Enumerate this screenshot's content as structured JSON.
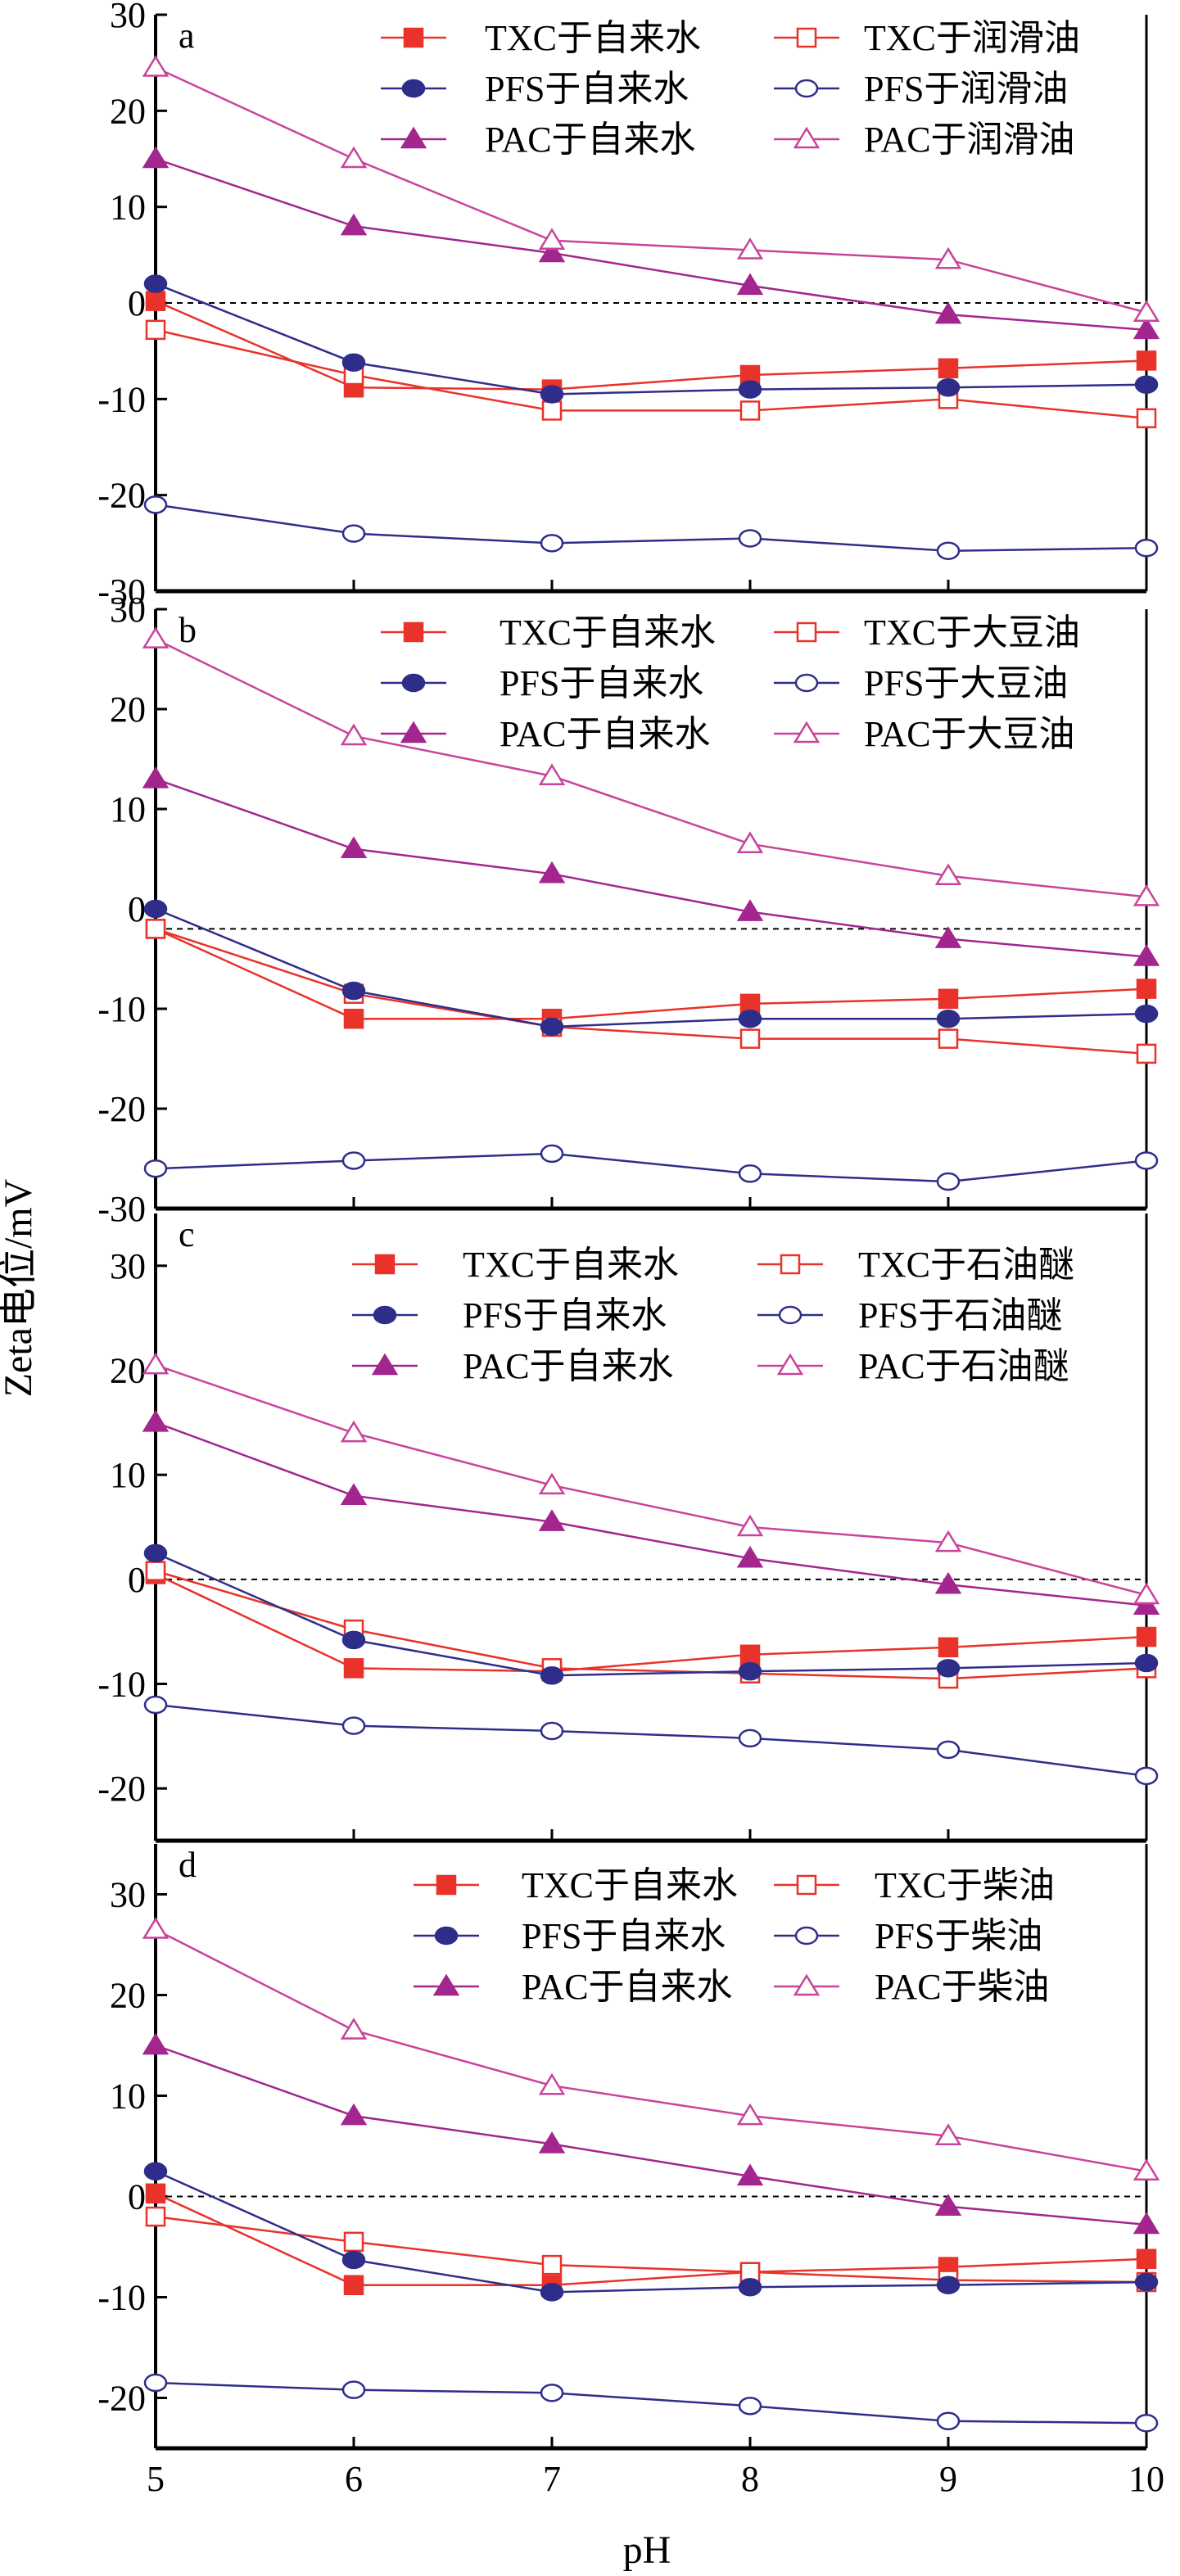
{
  "chart_data": [
    {
      "type": "line",
      "panel_label": "a",
      "x": [
        5,
        6,
        7,
        8,
        9,
        10
      ],
      "xlim": [
        5,
        10
      ],
      "ylim": [
        -30,
        30
      ],
      "yticks": [
        30,
        20,
        10,
        0,
        -10,
        -20,
        -30
      ],
      "reference_line_y": 0,
      "legend_position": "top-right",
      "series": [
        {
          "name": "TXC于自来水",
          "values": [
            0.2,
            -8.8,
            -9.0,
            -7.5,
            -6.8,
            -6.0
          ],
          "color": "#e8322a",
          "marker": "square",
          "fill": "filled"
        },
        {
          "name": "TXC于润滑油",
          "values": [
            -2.8,
            -7.5,
            -11.2,
            -11.2,
            -10.0,
            -12.0
          ],
          "color": "#e8322a",
          "marker": "square",
          "fill": "open"
        },
        {
          "name": "PFS于自来水",
          "values": [
            2.0,
            -6.2,
            -9.5,
            -9.0,
            -8.8,
            -8.5
          ],
          "color": "#2e2e8a",
          "marker": "circle",
          "fill": "filled"
        },
        {
          "name": "PFS于润滑油",
          "values": [
            -21.0,
            -24.0,
            -25.0,
            -24.5,
            -25.8,
            -25.5
          ],
          "color": "#2e2e8a",
          "marker": "circle",
          "fill": "open"
        },
        {
          "name": "PAC于自来水",
          "values": [
            15.0,
            8.0,
            5.2,
            1.8,
            -1.2,
            -2.8
          ],
          "color": "#a3268e",
          "marker": "triangle",
          "fill": "filled"
        },
        {
          "name": "PAC于润滑油",
          "values": [
            24.5,
            15.0,
            6.5,
            5.5,
            4.5,
            -1.0
          ],
          "color": "#c8449a",
          "marker": "triangle",
          "fill": "open"
        }
      ]
    },
    {
      "type": "line",
      "panel_label": "b",
      "x": [
        5,
        6,
        7,
        8,
        9,
        10
      ],
      "xlim": [
        5,
        10
      ],
      "ylim": [
        -30,
        30
      ],
      "yticks": [
        30,
        20,
        10,
        0,
        -10,
        -20,
        -30
      ],
      "reference_line_y": -2,
      "legend_position": "top-right",
      "series": [
        {
          "name": "TXC于自来水",
          "values": [
            -2.0,
            -11.0,
            -11.0,
            -9.5,
            -9.0,
            -8.0
          ],
          "color": "#e8322a",
          "marker": "square",
          "fill": "filled"
        },
        {
          "name": "TXC于大豆油",
          "values": [
            -2.0,
            -8.5,
            -11.8,
            -13.0,
            -13.0,
            -14.5
          ],
          "color": "#e8322a",
          "marker": "square",
          "fill": "open"
        },
        {
          "name": "PFS于自来水",
          "values": [
            0.0,
            -8.2,
            -11.8,
            -11.0,
            -11.0,
            -10.5
          ],
          "color": "#2e2e8a",
          "marker": "circle",
          "fill": "filled"
        },
        {
          "name": "PFS于大豆油",
          "values": [
            -26.0,
            -25.2,
            -24.5,
            -26.5,
            -27.3,
            -25.2
          ],
          "color": "#2e2e8a",
          "marker": "circle",
          "fill": "open"
        },
        {
          "name": "PAC于自来水",
          "values": [
            13.0,
            6.0,
            3.5,
            -0.3,
            -3.0,
            -4.8
          ],
          "color": "#a3268e",
          "marker": "triangle",
          "fill": "filled"
        },
        {
          "name": "PAC于大豆油",
          "values": [
            27.0,
            17.3,
            13.3,
            6.5,
            3.3,
            1.2
          ],
          "color": "#c8449a",
          "marker": "triangle",
          "fill": "open"
        }
      ]
    },
    {
      "type": "line",
      "panel_label": "c",
      "x": [
        5,
        6,
        7,
        8,
        9,
        10
      ],
      "xlim": [
        5,
        10
      ],
      "ylim": [
        -25,
        35
      ],
      "yticks": [
        30,
        20,
        10,
        0,
        -10,
        -20
      ],
      "reference_line_y": 0,
      "legend_position": "top-right",
      "series": [
        {
          "name": "TXC于自来水",
          "values": [
            0.5,
            -8.5,
            -8.8,
            -7.2,
            -6.5,
            -5.5
          ],
          "color": "#e8322a",
          "marker": "square",
          "fill": "filled"
        },
        {
          "name": "TXC于石油醚",
          "values": [
            0.8,
            -4.8,
            -8.5,
            -9.0,
            -9.5,
            -8.5
          ],
          "color": "#e8322a",
          "marker": "square",
          "fill": "open"
        },
        {
          "name": "PFS于自来水",
          "values": [
            2.5,
            -5.8,
            -9.2,
            -8.8,
            -8.5,
            -8.0
          ],
          "color": "#2e2e8a",
          "marker": "circle",
          "fill": "filled"
        },
        {
          "name": "PFS于石油醚",
          "values": [
            -12.0,
            -14.0,
            -14.5,
            -15.2,
            -16.3,
            -18.8
          ],
          "color": "#2e2e8a",
          "marker": "circle",
          "fill": "open"
        },
        {
          "name": "PAC于自来水",
          "values": [
            15.0,
            8.0,
            5.5,
            2.0,
            -0.5,
            -2.5
          ],
          "color": "#a3268e",
          "marker": "triangle",
          "fill": "filled"
        },
        {
          "name": "PAC于石油醚",
          "values": [
            20.5,
            14.0,
            9.0,
            5.0,
            3.5,
            -1.5
          ],
          "color": "#c8449a",
          "marker": "triangle",
          "fill": "open"
        }
      ]
    },
    {
      "type": "line",
      "panel_label": "d",
      "x": [
        5,
        6,
        7,
        8,
        9,
        10
      ],
      "xlim": [
        5,
        10
      ],
      "ylim": [
        -25,
        35
      ],
      "yticks": [
        30,
        20,
        10,
        0,
        -10,
        -20
      ],
      "xticks": [
        5,
        6,
        7,
        8,
        9,
        10
      ],
      "xlabel": "pH",
      "reference_line_y": 0,
      "legend_position": "top-right",
      "series": [
        {
          "name": "TXC于自来水",
          "values": [
            0.3,
            -8.8,
            -8.8,
            -7.5,
            -7.0,
            -6.2
          ],
          "color": "#e8322a",
          "marker": "square",
          "fill": "filled"
        },
        {
          "name": "TXC于柴油",
          "values": [
            -2.0,
            -4.5,
            -6.8,
            -7.5,
            -8.3,
            -8.5
          ],
          "color": "#e8322a",
          "marker": "square",
          "fill": "open"
        },
        {
          "name": "PFS于自来水",
          "values": [
            2.5,
            -6.3,
            -9.5,
            -9.0,
            -8.8,
            -8.5
          ],
          "color": "#2e2e8a",
          "marker": "circle",
          "fill": "filled"
        },
        {
          "name": "PFS于柴油",
          "values": [
            -18.5,
            -19.2,
            -19.5,
            -20.8,
            -22.3,
            -22.5
          ],
          "color": "#2e2e8a",
          "marker": "circle",
          "fill": "open"
        },
        {
          "name": "PAC于自来水",
          "values": [
            15.0,
            8.0,
            5.2,
            2.0,
            -1.0,
            -2.8
          ],
          "color": "#a3268e",
          "marker": "triangle",
          "fill": "filled"
        },
        {
          "name": "PAC于柴油",
          "values": [
            26.5,
            16.5,
            11.0,
            8.0,
            6.0,
            2.5
          ],
          "color": "#c8449a",
          "marker": "triangle",
          "fill": "open"
        }
      ]
    }
  ],
  "ylabel": "Zeta电位/mV"
}
